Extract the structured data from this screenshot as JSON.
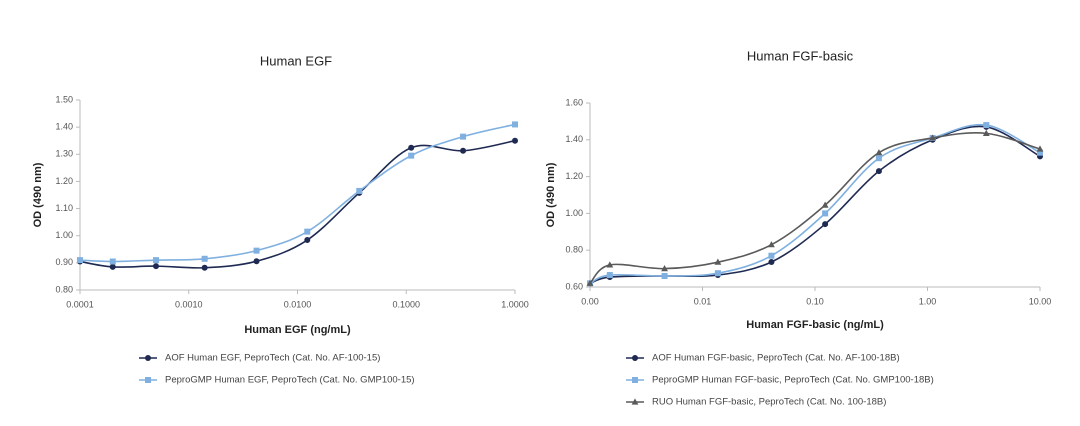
{
  "chart_data": [
    {
      "type": "line",
      "title": "Human EGF",
      "x_label": "Human EGF (ng/mL)",
      "y_label": "OD (490 nm)",
      "xscale": "log",
      "x": [
        0.0001,
        0.0002,
        0.0005,
        0.0014,
        0.0042,
        0.0123,
        0.037,
        0.111,
        0.333,
        1.0
      ],
      "xlim": [
        0.0001,
        1.0
      ],
      "xticks": [
        0.0001,
        {
          "value": 0.001,
          "label": "0.0010"
        },
        {
          "value": 0.01,
          "label": "0.0100"
        },
        {
          "value": 0.1,
          "label": "0.1000"
        },
        {
          "value": 1,
          "label": "1.0000"
        }
      ],
      "ylim": [
        0.8,
        1.5
      ],
      "yticks": [
        {
          "value": 0.8,
          "label": "0.80"
        },
        {
          "value": 0.9,
          "label": "0.90"
        },
        {
          "value": 1.0,
          "label": "1.00"
        },
        {
          "value": 1.1,
          "label": "1.10"
        },
        {
          "value": 1.2,
          "label": "1.20"
        },
        {
          "value": 1.3,
          "label": "1.30"
        },
        {
          "value": 1.4,
          "label": "1.40"
        },
        {
          "value": 1.5,
          "label": "1.50"
        }
      ],
      "series": [
        {
          "name": "AOF Human EGF, PeproTech (Cat. No. AF-100-15)",
          "color": "#1f2a52",
          "marker": "circle",
          "values": [
            0.905,
            0.885,
            0.888,
            0.882,
            0.906,
            0.984,
            1.158,
            1.324,
            1.313,
            1.35
          ]
        },
        {
          "name": "PeproGMP Human EGF, PeproTech (Cat. No. GMP100-15)",
          "color": "#7fb0e0",
          "marker": "square",
          "values": [
            0.91,
            0.905,
            0.91,
            0.915,
            0.945,
            1.015,
            1.165,
            1.295,
            1.365,
            1.41
          ]
        }
      ]
    },
    {
      "type": "line",
      "title": "Human FGF-basic",
      "x_label": "Human FGF-basic (ng/mL)",
      "y_label": "OD (490 nm)",
      "xscale": "log",
      "x": [
        0.001,
        0.0015,
        0.0046,
        0.0137,
        0.041,
        0.123,
        0.37,
        1.11,
        3.33,
        10
      ],
      "xlim": [
        0.001,
        10
      ],
      "xticks": [
        {
          "value": 0.001,
          "label": "0.00"
        },
        0.01,
        {
          "value": 0.1,
          "label": "0.10"
        },
        {
          "value": 1,
          "label": "1.00"
        },
        {
          "value": 10,
          "label": "10.00"
        }
      ],
      "ylim": [
        0.6,
        1.6
      ],
      "yticks": [
        {
          "value": 0.6,
          "label": "0.60"
        },
        {
          "value": 0.8,
          "label": "0.80"
        },
        {
          "value": 1.0,
          "label": "1.00"
        },
        {
          "value": 1.2,
          "label": "1.20"
        },
        {
          "value": 1.4,
          "label": "1.40"
        },
        {
          "value": 1.6,
          "label": "1.60"
        }
      ],
      "series": [
        {
          "name": "AOF Human FGF-basic, PeproTech (Cat. No. AF-100-18B)",
          "color": "#1f2a52",
          "marker": "circle",
          "values": [
            0.62,
            0.654,
            0.66,
            0.665,
            0.736,
            0.942,
            1.23,
            1.4,
            1.47,
            1.31
          ]
        },
        {
          "name": "PeproGMP Human FGF-basic, PeproTech (Cat. No. GMP100-18B)",
          "color": "#7fb0e0",
          "marker": "square",
          "values": [
            0.62,
            0.665,
            0.66,
            0.675,
            0.77,
            1.0,
            1.3,
            1.41,
            1.48,
            1.33
          ]
        },
        {
          "name": "RUO Human FGF-basic, PeproTech (Cat. No. 100-18B)",
          "color": "#5a5a5a",
          "marker": "triangle",
          "values": [
            0.62,
            0.72,
            0.7,
            0.735,
            0.83,
            1.045,
            1.33,
            1.41,
            1.435,
            1.35
          ]
        }
      ]
    }
  ]
}
